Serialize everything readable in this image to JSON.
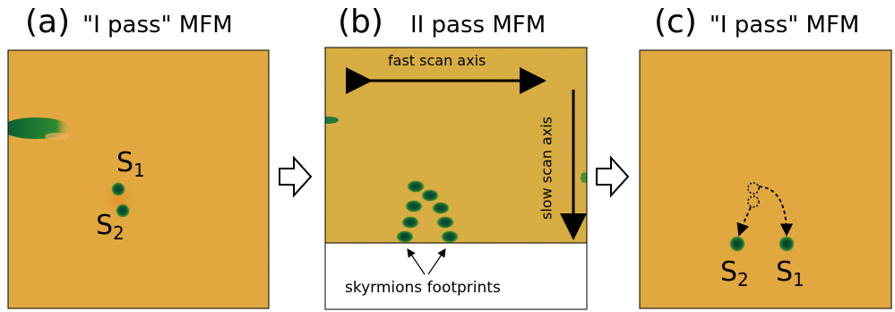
{
  "colors": {
    "mfm_background": "#dfa23a",
    "skyrmion_core": "#0b5a35",
    "skyrmion_rim": "#2f8a2e"
  },
  "panels": [
    {
      "letter": "(a)",
      "mode": "\"I pass\" MFM"
    },
    {
      "letter": "(b)",
      "mode": "II pass MFM"
    },
    {
      "letter": "(c)",
      "mode": "\"I pass\" MFM"
    }
  ],
  "panel_a": {
    "s1": "S",
    "s1_sub": "1",
    "s2": "S",
    "s2_sub": "2"
  },
  "panel_b": {
    "fast_scan": "fast scan axis",
    "slow_scan": "slow scan axis",
    "footprints": "skyrmions footprints"
  },
  "panel_c": {
    "s1": "S",
    "s1_sub": "1",
    "s2": "S",
    "s2_sub": "2"
  },
  "flow_arrows": [
    "right-outline-arrow-icon",
    "right-outline-arrow-icon"
  ]
}
